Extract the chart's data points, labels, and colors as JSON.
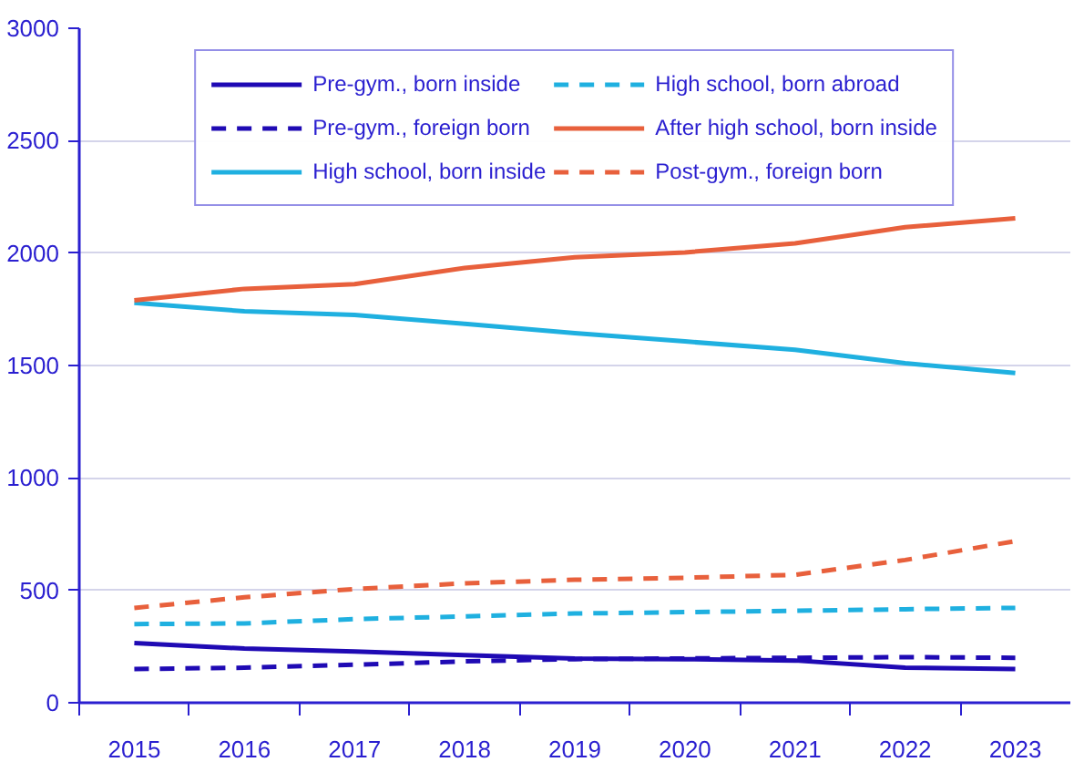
{
  "chart_data": {
    "type": "line",
    "categories": [
      "2015",
      "2016",
      "2017",
      "2018",
      "2019",
      "2020",
      "2021",
      "2022",
      "2023"
    ],
    "ylim": [
      0,
      3000
    ],
    "yticks": [
      0,
      500,
      1000,
      1500,
      2000,
      2500,
      3000
    ],
    "grid": "y",
    "legend": "top",
    "marker": "none",
    "series": [
      {
        "name": "Pre-gym., born inside",
        "color": "#1f0ab4",
        "line_style": "solid",
        "values": [
          266,
          241,
          228,
          212,
          197,
          194,
          188,
          156,
          150
        ]
      },
      {
        "name": "Pre-gym., foreign born",
        "color": "#1f0ab4",
        "line_style": "dashed",
        "values": [
          150,
          156,
          169,
          184,
          194,
          197,
          200,
          203,
          200
        ]
      },
      {
        "name": "High school, born inside",
        "color": "#1fb0e0",
        "line_style": "solid",
        "values": [
          1779,
          1741,
          1725,
          1685,
          1644,
          1607,
          1570,
          1510,
          1467
        ]
      },
      {
        "name": "High school, born abroad",
        "color": "#1fb0e0",
        "line_style": "dashed",
        "values": [
          350,
          353,
          372,
          384,
          397,
          403,
          409,
          416,
          422
        ]
      },
      {
        "name": "After high school, born inside",
        "color": "#e8603c",
        "line_style": "solid",
        "values": [
          1790,
          1841,
          1862,
          1934,
          1981,
          2003,
          2043,
          2115,
          2155
        ]
      },
      {
        "name": "Post-gym., foreign born",
        "color": "#e8603c",
        "line_style": "dashed",
        "values": [
          422,
          469,
          506,
          531,
          547,
          556,
          569,
          635,
          719
        ]
      }
    ]
  }
}
